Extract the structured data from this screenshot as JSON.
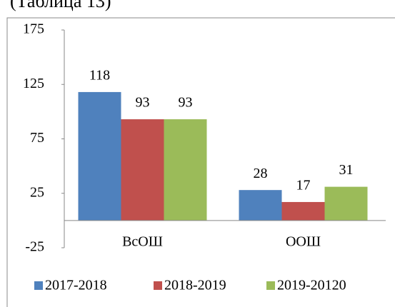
{
  "caption": "(Таблица 13)",
  "chart_data": {
    "type": "bar",
    "categories": [
      "ВсОШ",
      "ООШ"
    ],
    "series": [
      {
        "name": "2017-2018",
        "color": "#4f81bd",
        "values": [
          118,
          28
        ]
      },
      {
        "name": "2018-2019",
        "color": "#c0504d",
        "values": [
          93,
          17
        ]
      },
      {
        "name": "2019-20120",
        "color": "#9bbb59",
        "values": [
          93,
          31
        ]
      }
    ],
    "ylim": [
      -25,
      175
    ],
    "yticks": [
      -25,
      25,
      75,
      125,
      175
    ],
    "legend": "bottom"
  }
}
